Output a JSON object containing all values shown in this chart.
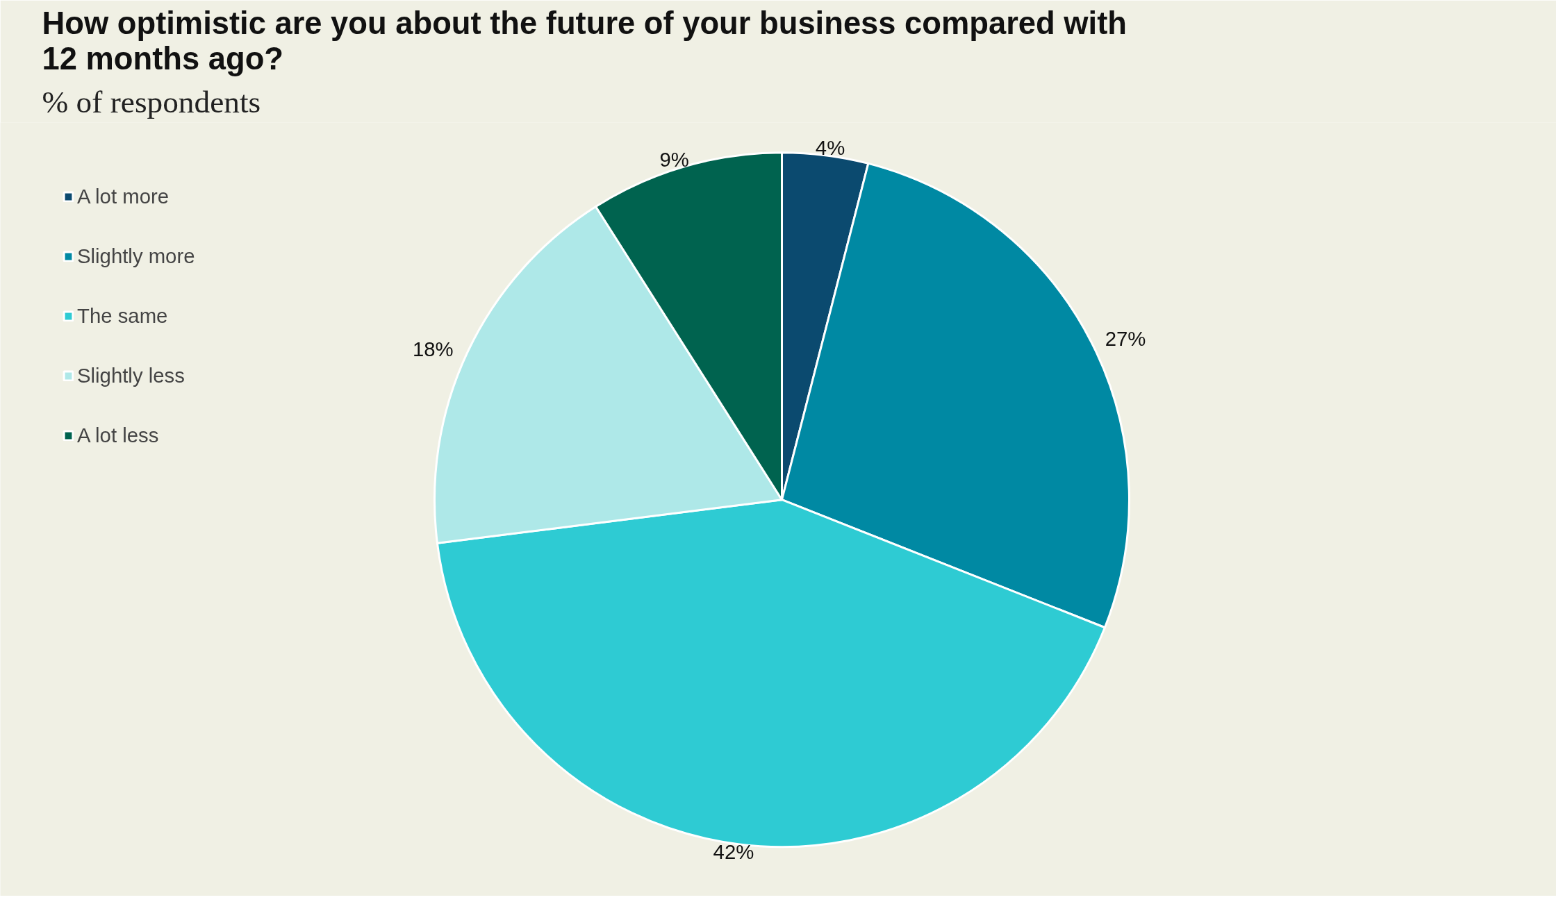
{
  "chart_data": {
    "type": "pie",
    "title": "How optimistic are you about the future of your business compared with\n12 months ago?",
    "subtitle": "% of respondents",
    "categories": [
      "A lot more",
      "Slightly more",
      "The same",
      "Slightly less",
      "A lot less"
    ],
    "values": [
      4,
      27,
      42,
      18,
      9
    ],
    "colors": [
      "#0b4a6f",
      "#0089a3",
      "#2ecbd3",
      "#aee8e8",
      "#00634f"
    ],
    "value_labels": [
      "4%",
      "27%",
      "42%",
      "18%",
      "9%"
    ],
    "legend": "left"
  }
}
